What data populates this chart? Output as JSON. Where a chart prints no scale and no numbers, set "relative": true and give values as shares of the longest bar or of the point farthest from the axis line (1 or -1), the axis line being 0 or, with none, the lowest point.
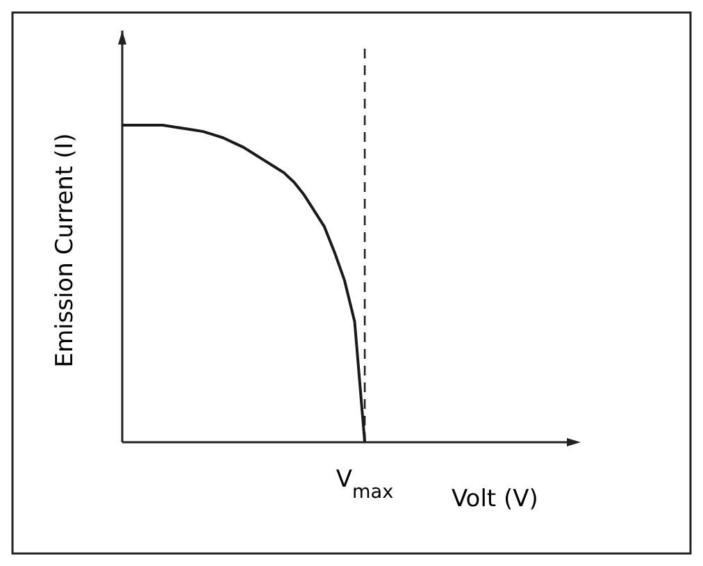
{
  "chart_data": {
    "type": "line",
    "relative": true,
    "ylabel": "Emission Current (I)",
    "xlabel": "Volt (V)",
    "categories": [
      null,
      null,
      null,
      null,
      null,
      null,
      null,
      null,
      null,
      null,
      null,
      null,
      null,
      null,
      null,
      null,
      null,
      null,
      null,
      null,
      null,
      null,
      null,
      null,
      null,
      null,
      null,
      null,
      null,
      null,
      null,
      null,
      null,
      null,
      null,
      null,
      null,
      null,
      null,
      null,
      null,
      null,
      null,
      null,
      null
    ],
    "series": [
      {
        "color": "#1a1a1a",
        "values": [
          1,
          1,
          1,
          1,
          1,
          0.995,
          0.99,
          0.985,
          0.98,
          0.97,
          0.96,
          0.945,
          0.93,
          0.91,
          0.89,
          0.87,
          0.85,
          0.82,
          0.78,
          0.73,
          0.68,
          0.6,
          0.51,
          0.38,
          0,
          null,
          null,
          null,
          null,
          null,
          null,
          null,
          null,
          null,
          null,
          null,
          null,
          null,
          null,
          null,
          null,
          null,
          null,
          null,
          null
        ]
      }
    ],
    "annotations": [
      "V$_{max}$"
    ],
    "marker": "none",
    "line_style": "solid"
  }
}
